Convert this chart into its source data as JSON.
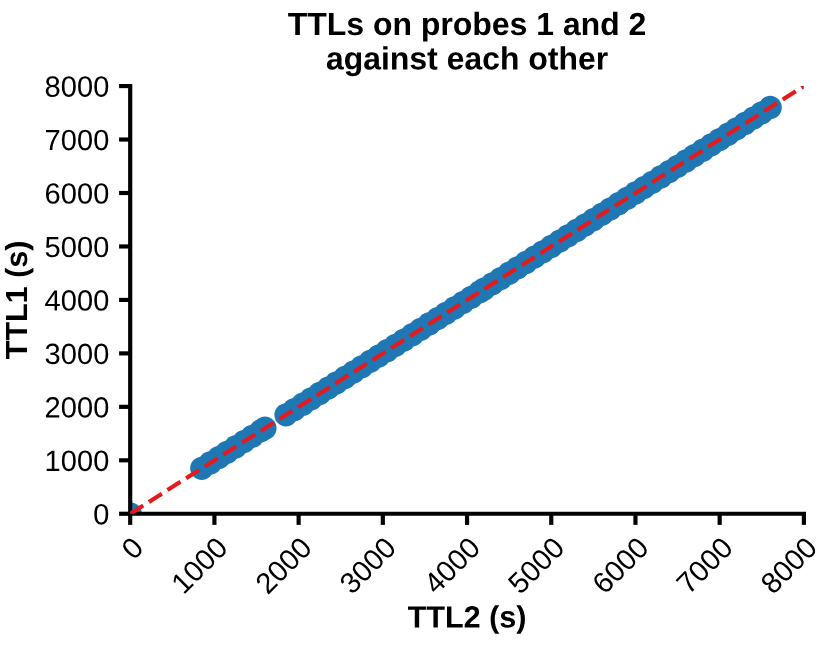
{
  "chart_data": {
    "type": "scatter",
    "title": "TTLs on probes 1 and 2\nagainst each other",
    "xlabel": "TTL2 (s)",
    "ylabel": "TTL1 (s)",
    "xlim": [
      0,
      8000
    ],
    "ylim": [
      0,
      8000
    ],
    "xticks": [
      0,
      1000,
      2000,
      3000,
      4000,
      5000,
      6000,
      7000,
      8000
    ],
    "yticks": [
      0,
      1000,
      2000,
      3000,
      4000,
      5000,
      6000,
      7000,
      8000
    ],
    "grid": false,
    "legend": false,
    "series": [
      {
        "color": "#1f77b4",
        "marker": "circle",
        "x": [
          0,
          850,
          950,
          1050,
          1150,
          1250,
          1350,
          1450,
          1550,
          1600,
          1850,
          1950,
          2050,
          2150,
          2250,
          2350,
          2450,
          2550,
          2650,
          2750,
          2850,
          2950,
          3050,
          3150,
          3250,
          3350,
          3450,
          3550,
          3650,
          3750,
          3850,
          3950,
          4050,
          4150,
          4200,
          4300,
          4400,
          4500,
          4600,
          4700,
          4800,
          4900,
          5000,
          5100,
          5200,
          5300,
          5400,
          5500,
          5600,
          5700,
          5800,
          5900,
          6000,
          6100,
          6200,
          6300,
          6400,
          6500,
          6600,
          6700,
          6800,
          6900,
          7000,
          7100,
          7200,
          7300,
          7400,
          7500,
          7600
        ],
        "values": [
          0,
          850,
          950,
          1050,
          1150,
          1250,
          1350,
          1450,
          1550,
          1600,
          1850,
          1950,
          2050,
          2150,
          2250,
          2350,
          2450,
          2550,
          2650,
          2750,
          2850,
          2950,
          3050,
          3150,
          3250,
          3350,
          3450,
          3550,
          3650,
          3750,
          3850,
          3950,
          4050,
          4150,
          4200,
          4300,
          4400,
          4500,
          4600,
          4700,
          4800,
          4900,
          5000,
          5100,
          5200,
          5300,
          5400,
          5500,
          5600,
          5700,
          5800,
          5900,
          6000,
          6100,
          6200,
          6300,
          6400,
          6500,
          6600,
          6700,
          6800,
          6900,
          7000,
          7100,
          7200,
          7300,
          7400,
          7500,
          7600
        ]
      },
      {
        "type": "line",
        "color": "#e41a1c",
        "line_style": "dashed",
        "marker": "none",
        "x": [
          0,
          8000
        ],
        "values": [
          0,
          8000
        ]
      }
    ]
  }
}
